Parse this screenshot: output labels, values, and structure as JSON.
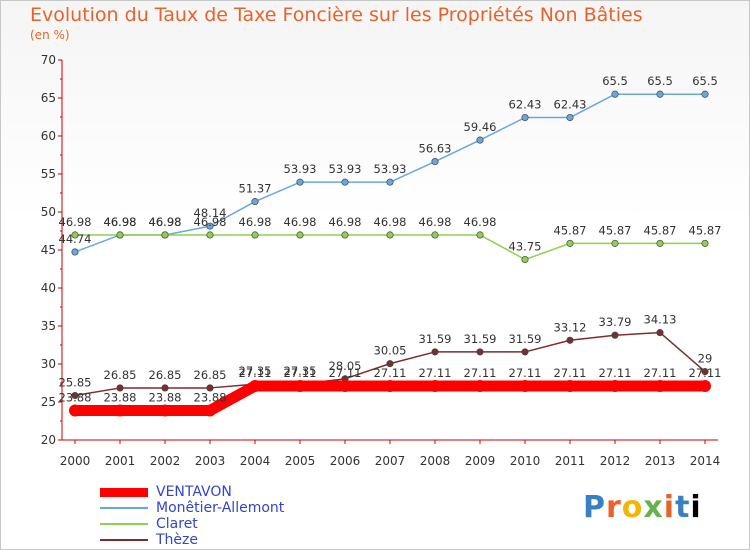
{
  "chart_data": {
    "type": "line",
    "title": "Evolution du Taux de Taxe Foncière sur les Propriétés Non Bâties",
    "subtitle": "(en %)",
    "x": [
      "2000",
      "2001",
      "2002",
      "2003",
      "2004",
      "2005",
      "2006",
      "2007",
      "2008",
      "2009",
      "2010",
      "2011",
      "2012",
      "2013",
      "2014"
    ],
    "ylim": [
      20,
      70
    ],
    "yticks": [
      20,
      25,
      30,
      35,
      40,
      45,
      50,
      55,
      60,
      65,
      70
    ],
    "grid": false,
    "legend_position": "bottom-left",
    "series": [
      {
        "name": "VENTAVON",
        "color": "#ff0000",
        "values": [
          23.88,
          23.88,
          23.88,
          23.88,
          27.11,
          27.11,
          27.11,
          27.11,
          27.11,
          27.11,
          27.11,
          27.11,
          27.11,
          27.11,
          27.11
        ],
        "labels": [
          "23.88",
          "23.88",
          "23.88",
          "23.88",
          "27.11",
          "27.11",
          "27.11",
          "27.11",
          "27.11",
          "27.11",
          "27.11",
          "27.11",
          "27.11",
          "27.11",
          "27.11"
        ]
      },
      {
        "name": "Monêtier-Allemont",
        "color": "#6aa8dc",
        "values": [
          44.74,
          46.98,
          46.98,
          48.14,
          51.37,
          53.93,
          53.93,
          53.93,
          56.63,
          59.46,
          62.43,
          62.43,
          65.5,
          65.5,
          65.5
        ],
        "labels": [
          "44.74",
          "46.98",
          "46.98",
          "48.14",
          "51.37",
          "53.93",
          "53.93",
          "53.93",
          "56.63",
          "59.46",
          "62.43",
          "62.43",
          "65.5",
          "65.5",
          "65.5"
        ]
      },
      {
        "name": "Claret",
        "color": "#8fd14f",
        "values": [
          46.98,
          46.98,
          46.98,
          46.98,
          46.98,
          46.98,
          46.98,
          46.98,
          46.98,
          46.98,
          43.75,
          45.87,
          45.87,
          45.87,
          45.87
        ],
        "labels": [
          "46.98",
          "46.98",
          "46.98",
          "46.98",
          "46.98",
          "46.98",
          "46.98",
          "46.98",
          "46.98",
          "46.98",
          "43.75",
          "45.87",
          "45.87",
          "45.87",
          "45.87"
        ]
      },
      {
        "name": "Thèze",
        "color": "#7a2e2e",
        "values": [
          25.85,
          26.85,
          26.85,
          26.85,
          27.35,
          27.35,
          28.05,
          30.05,
          31.59,
          31.59,
          31.59,
          33.12,
          33.79,
          34.13,
          29
        ],
        "labels": [
          "25.85",
          "26.85",
          "26.85",
          "26.85",
          "27.35",
          "27.35",
          "28.05",
          "30.05",
          "31.59",
          "31.59",
          "31.59",
          "33.12",
          "33.79",
          "34.13",
          "29"
        ]
      }
    ]
  },
  "logo_text": "Proxiti",
  "colors": {
    "title": "#e8632b",
    "axis": "#cc0000",
    "label": "#333333"
  }
}
